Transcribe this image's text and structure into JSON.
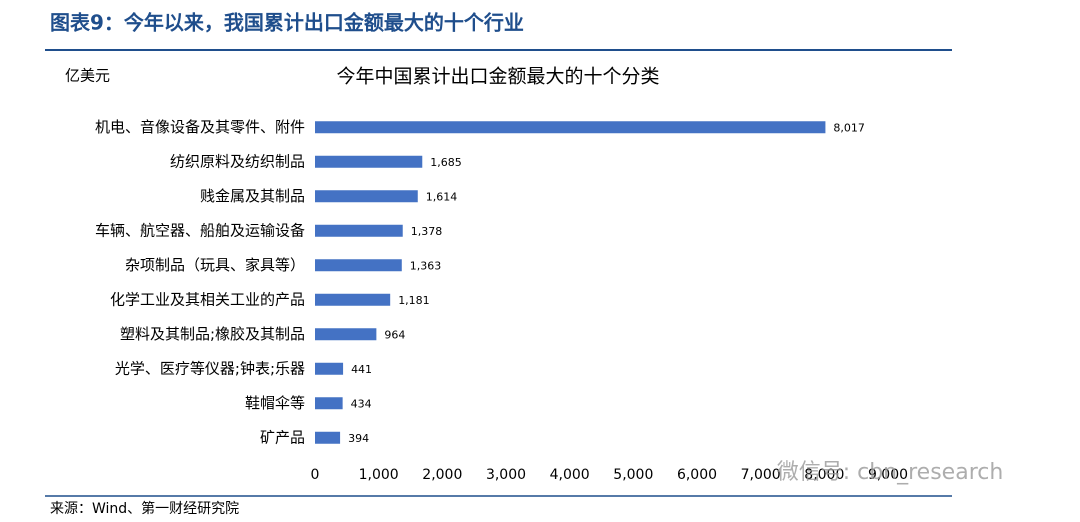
{
  "header": {
    "title": "图表9：今年以来，我国累计出口金额最大的十个行业"
  },
  "chart_data": {
    "type": "barh",
    "title": "今年中国累计出口金额最大的十个分类",
    "unit": "亿美元",
    "categories": [
      "机电、音像设备及其零件、附件",
      "纺织原料及纺织制品",
      "贱金属及其制品",
      "车辆、航空器、船舶及运输设备",
      "杂项制品（玩具、家具等）",
      "化学工业及其相关工业的产品",
      "塑料及其制品;橡胶及其制品",
      "光学、医疗等仪器;钟表;乐器",
      "鞋帽伞等",
      "矿产品"
    ],
    "values": [
      8017,
      1685,
      1614,
      1378,
      1363,
      1181,
      964,
      441,
      434,
      394
    ],
    "value_labels": [
      "8,017",
      "1,685",
      "1,614",
      "1,378",
      "1,363",
      "1,181",
      "964",
      "441",
      "434",
      "394"
    ],
    "color": "#4472c4",
    "xlim": [
      0,
      9000
    ],
    "xticks": [
      0,
      {
        "value": 1000,
        "label": "1,000"
      },
      {
        "value": 2000,
        "label": "2,000"
      },
      {
        "value": 3000,
        "label": "3,000"
      },
      {
        "value": 4000,
        "label": "4,000"
      },
      {
        "value": 5000,
        "label": "5,000"
      },
      {
        "value": 6000,
        "label": "6,000"
      },
      {
        "value": 7000,
        "label": "7,000"
      },
      {
        "value": 8000,
        "label": "8,000"
      },
      {
        "value": 9000,
        "label": "9,000"
      }
    ]
  },
  "footer": {
    "source": "来源：Wind、第一财经研究院"
  },
  "watermark": "微信号: cbn_research"
}
